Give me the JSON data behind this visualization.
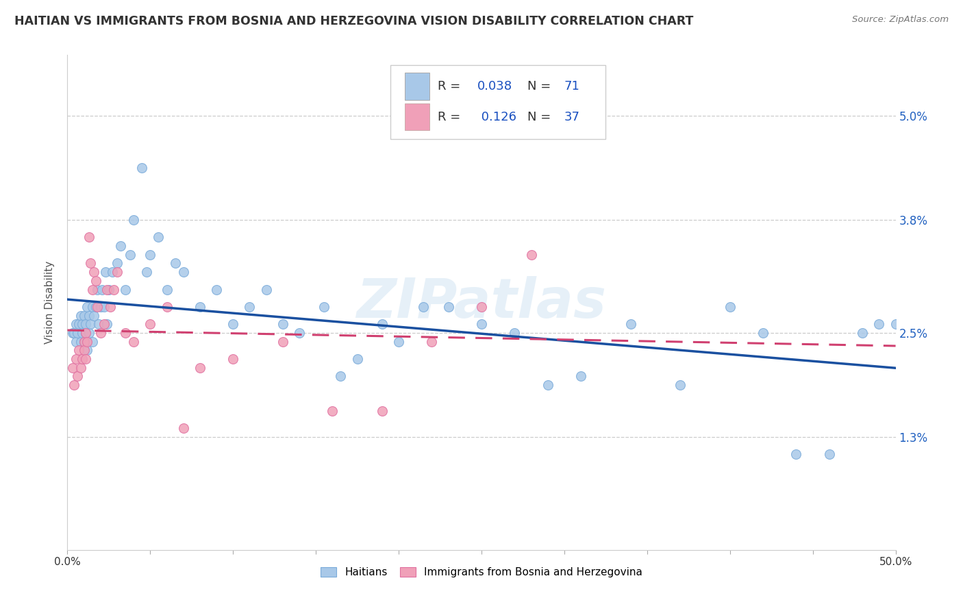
{
  "title": "HAITIAN VS IMMIGRANTS FROM BOSNIA AND HERZEGOVINA VISION DISABILITY CORRELATION CHART",
  "source": "Source: ZipAtlas.com",
  "ylabel": "Vision Disability",
  "xlim": [
    0.0,
    0.5
  ],
  "ylim": [
    0.0,
    0.057
  ],
  "yticks": [
    0.013,
    0.025,
    0.038,
    0.05
  ],
  "ytick_labels": [
    "1.3%",
    "2.5%",
    "3.8%",
    "5.0%"
  ],
  "blue_R": 0.038,
  "blue_N": 71,
  "pink_R": 0.126,
  "pink_N": 37,
  "blue_color": "#a8c8e8",
  "pink_color": "#f0a0b8",
  "blue_line_color": "#1a50a0",
  "pink_line_color": "#d04070",
  "legend_R_color": "#1a50c0",
  "background_color": "#ffffff",
  "blue_scatter_x": [
    0.003,
    0.004,
    0.005,
    0.005,
    0.006,
    0.007,
    0.008,
    0.008,
    0.009,
    0.009,
    0.01,
    0.01,
    0.011,
    0.011,
    0.012,
    0.012,
    0.013,
    0.013,
    0.014,
    0.015,
    0.015,
    0.016,
    0.017,
    0.018,
    0.019,
    0.02,
    0.021,
    0.022,
    0.023,
    0.024,
    0.025,
    0.027,
    0.03,
    0.032,
    0.035,
    0.038,
    0.04,
    0.045,
    0.048,
    0.05,
    0.055,
    0.06,
    0.065,
    0.07,
    0.08,
    0.09,
    0.1,
    0.11,
    0.12,
    0.13,
    0.14,
    0.155,
    0.165,
    0.175,
    0.19,
    0.2,
    0.215,
    0.23,
    0.25,
    0.27,
    0.29,
    0.31,
    0.34,
    0.37,
    0.4,
    0.42,
    0.44,
    0.46,
    0.48,
    0.49,
    0.5
  ],
  "blue_scatter_y": [
    0.025,
    0.025,
    0.026,
    0.024,
    0.025,
    0.026,
    0.027,
    0.024,
    0.026,
    0.025,
    0.027,
    0.024,
    0.026,
    0.025,
    0.028,
    0.023,
    0.027,
    0.025,
    0.026,
    0.028,
    0.024,
    0.027,
    0.028,
    0.03,
    0.026,
    0.028,
    0.03,
    0.028,
    0.032,
    0.026,
    0.03,
    0.032,
    0.033,
    0.035,
    0.03,
    0.034,
    0.038,
    0.044,
    0.032,
    0.034,
    0.036,
    0.03,
    0.033,
    0.032,
    0.028,
    0.03,
    0.026,
    0.028,
    0.03,
    0.026,
    0.025,
    0.028,
    0.02,
    0.022,
    0.026,
    0.024,
    0.028,
    0.028,
    0.026,
    0.025,
    0.019,
    0.02,
    0.026,
    0.019,
    0.028,
    0.025,
    0.011,
    0.011,
    0.025,
    0.026,
    0.026
  ],
  "pink_scatter_x": [
    0.003,
    0.004,
    0.005,
    0.006,
    0.007,
    0.008,
    0.009,
    0.01,
    0.01,
    0.011,
    0.011,
    0.012,
    0.013,
    0.014,
    0.015,
    0.016,
    0.017,
    0.018,
    0.02,
    0.022,
    0.024,
    0.026,
    0.028,
    0.03,
    0.035,
    0.04,
    0.05,
    0.06,
    0.07,
    0.08,
    0.1,
    0.13,
    0.16,
    0.19,
    0.22,
    0.25,
    0.28
  ],
  "pink_scatter_y": [
    0.021,
    0.019,
    0.022,
    0.02,
    0.023,
    0.021,
    0.022,
    0.024,
    0.023,
    0.025,
    0.022,
    0.024,
    0.036,
    0.033,
    0.03,
    0.032,
    0.031,
    0.028,
    0.025,
    0.026,
    0.03,
    0.028,
    0.03,
    0.032,
    0.025,
    0.024,
    0.026,
    0.028,
    0.014,
    0.021,
    0.022,
    0.024,
    0.016,
    0.016,
    0.024,
    0.028,
    0.034
  ]
}
